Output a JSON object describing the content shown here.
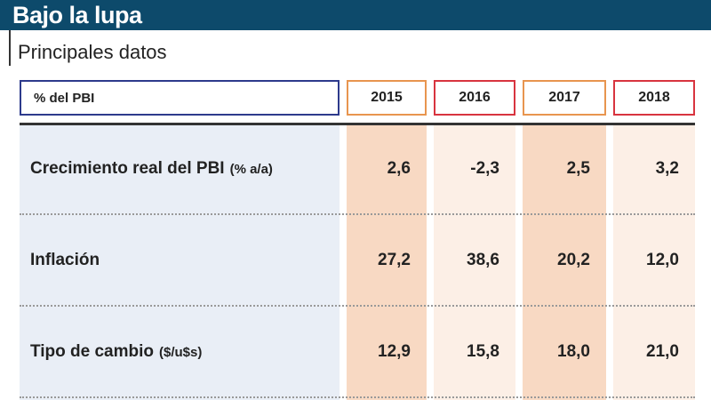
{
  "header": {
    "title": "Bajo la lupa",
    "subtitle": "Principales datos"
  },
  "table": {
    "columns": [
      "% del PBI",
      "2015",
      "2016",
      "2017",
      "2018"
    ],
    "rows": [
      {
        "label": "Crecimiento real del PBI",
        "unit": "(% a/a)",
        "values": [
          "2,6",
          "-2,3",
          "2,5",
          "3,2"
        ]
      },
      {
        "label": "Inflación",
        "values": [
          "27,2",
          "38,6",
          "20,2",
          "12,0"
        ]
      },
      {
        "label": "Tipo de cambio",
        "unit": "($/u$s)",
        "values": [
          "12,9",
          "15,8",
          "18,0",
          "21,0"
        ]
      }
    ]
  }
}
